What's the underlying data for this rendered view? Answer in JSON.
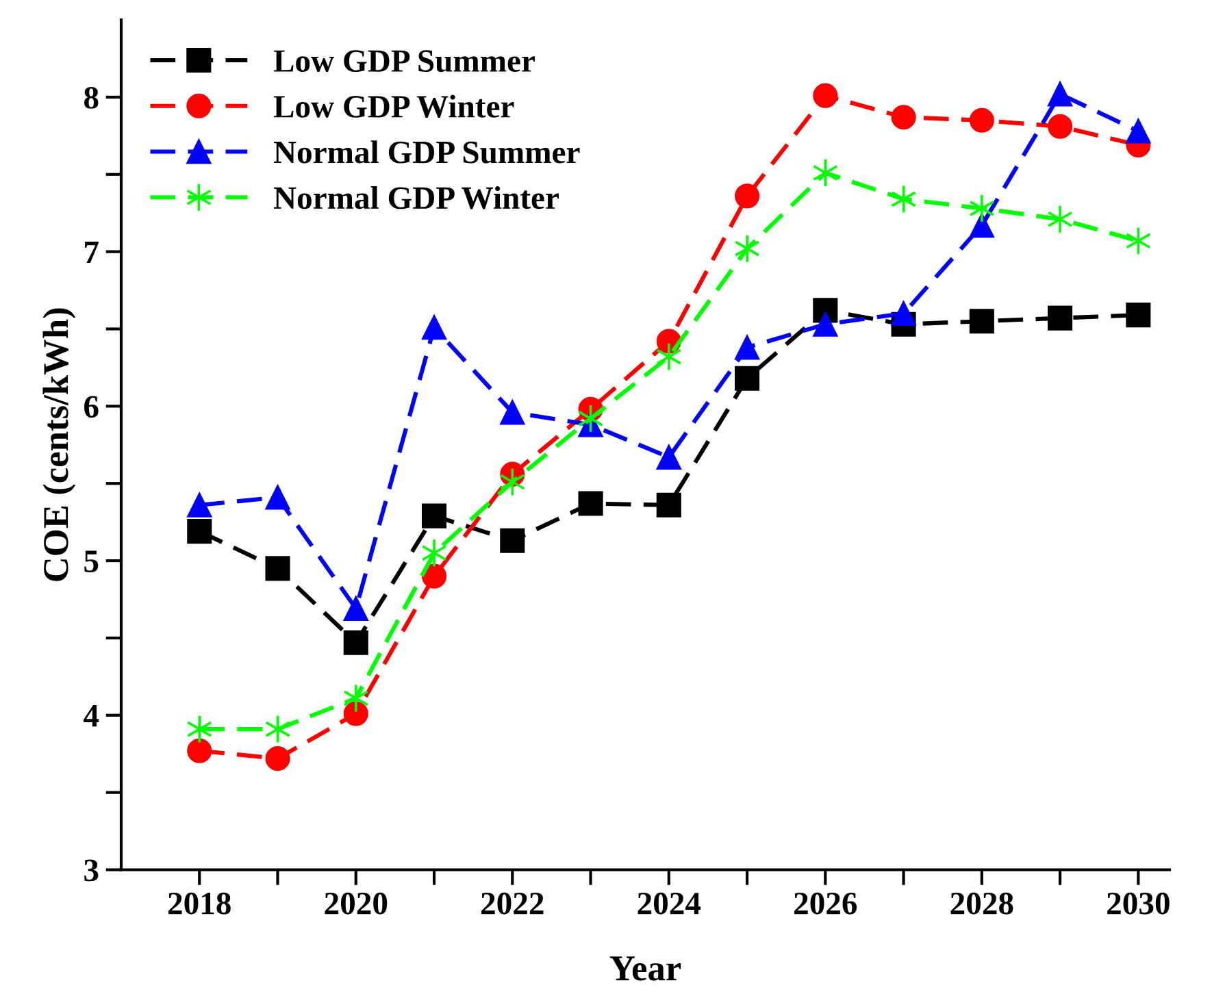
{
  "chart_data": {
    "type": "line",
    "xlabel": "Year",
    "ylabel": "COE (cents/kWh)",
    "x": [
      2018,
      2019,
      2020,
      2021,
      2022,
      2023,
      2024,
      2025,
      2026,
      2027,
      2028,
      2029,
      2030
    ],
    "xlim": [
      2017,
      2030.4
    ],
    "xticks": [
      2018,
      {
        "value": 2019,
        "label": null
      },
      2020,
      {
        "value": 2021,
        "label": null
      },
      2022,
      {
        "value": 2023,
        "label": null
      },
      2024,
      {
        "value": 2025,
        "label": null
      },
      2026,
      {
        "value": 2027,
        "label": null
      },
      2028,
      {
        "value": 2029,
        "label": null
      },
      2030
    ],
    "ylim": [
      3,
      8.5
    ],
    "yticks": [
      3,
      {
        "value": 3.5,
        "label": null
      },
      4,
      {
        "value": 4.5,
        "label": null
      },
      5,
      {
        "value": 5.5,
        "label": null
      },
      6,
      {
        "value": 6.5,
        "label": null
      },
      7,
      {
        "value": 7.5,
        "label": null
      },
      8
    ],
    "line_style": "dashed",
    "legend": "top left",
    "grid": false,
    "series": [
      {
        "name": "Low GDP Summer",
        "color": "#000000",
        "marker": "square",
        "values": [
          5.19,
          4.95,
          4.47,
          5.29,
          5.13,
          5.37,
          5.36,
          6.18,
          6.62,
          6.53,
          6.55,
          6.57,
          6.59
        ]
      },
      {
        "name": "Low GDP Winter",
        "color": "#ff0000",
        "marker": "circle",
        "values": [
          3.77,
          3.72,
          4.01,
          4.9,
          5.56,
          5.98,
          6.42,
          7.36,
          8.01,
          7.87,
          7.85,
          7.81,
          7.69
        ]
      },
      {
        "name": "Normal GDP Summer",
        "color": "#0000ff",
        "marker": "triangle",
        "values": [
          5.36,
          5.41,
          4.69,
          6.51,
          5.96,
          5.88,
          5.67,
          6.38,
          6.53,
          6.6,
          7.17,
          8.02,
          7.78
        ]
      },
      {
        "name": "Normal GDP Winter",
        "color": "#00ff00",
        "marker": "cross",
        "values": [
          3.91,
          3.91,
          4.11,
          5.05,
          5.51,
          5.92,
          6.32,
          7.02,
          7.51,
          7.34,
          7.28,
          7.21,
          7.07
        ]
      }
    ]
  }
}
